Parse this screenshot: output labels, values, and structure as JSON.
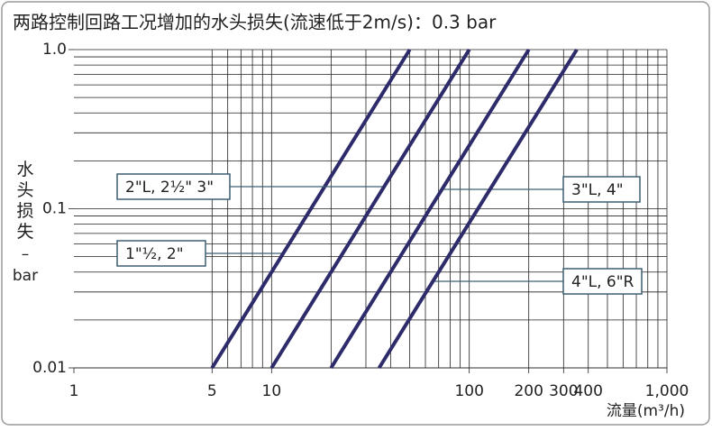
{
  "chart_data": {
    "type": "line",
    "title": "两路控制回路工况增加的水头损失(流速低于2m/s)：0.3 bar",
    "y_label": "水头损失",
    "y_unit": "bar",
    "x_label": "流量(m³/h)",
    "log_x": true,
    "log_y": true,
    "color": "#2e2b6b",
    "xlim": [
      1,
      1000
    ],
    "ylim": [
      0.01,
      1
    ],
    "xticks": [
      1,
      5,
      10,
      100,
      200,
      300,
      400,
      {
        "value": 1000,
        "label": "1,000"
      }
    ],
    "yticks": [
      0.01,
      0.1,
      {
        "value": 1,
        "label": "1.0"
      }
    ],
    "xgrid": [
      5,
      6,
      7,
      8,
      9,
      10,
      20,
      30,
      40,
      50,
      60,
      70,
      80,
      90,
      100,
      200,
      300,
      400,
      500,
      600,
      700,
      800,
      900,
      1000
    ],
    "ygrid": [
      0.01,
      0.02,
      0.03,
      0.04,
      0.05,
      0.06,
      0.07,
      0.08,
      0.09,
      0.1,
      0.2,
      0.3,
      0.4,
      0.5,
      0.6,
      0.7,
      0.8,
      0.9,
      1
    ],
    "series": [
      {
        "name": "1\"½, 2\"",
        "x": [
          5,
          50
        ],
        "values": [
          0.01,
          1
        ]
      },
      {
        "name": "2\"L, 2½\" 3\"",
        "x": [
          10,
          100
        ],
        "values": [
          0.01,
          1
        ]
      },
      {
        "name": "3\"L, 4\"",
        "x": [
          20,
          200
        ],
        "values": [
          0.01,
          1
        ]
      },
      {
        "name": "4\"L, 6\"R",
        "x": [
          35,
          350
        ],
        "values": [
          0.01,
          1
        ]
      }
    ]
  }
}
